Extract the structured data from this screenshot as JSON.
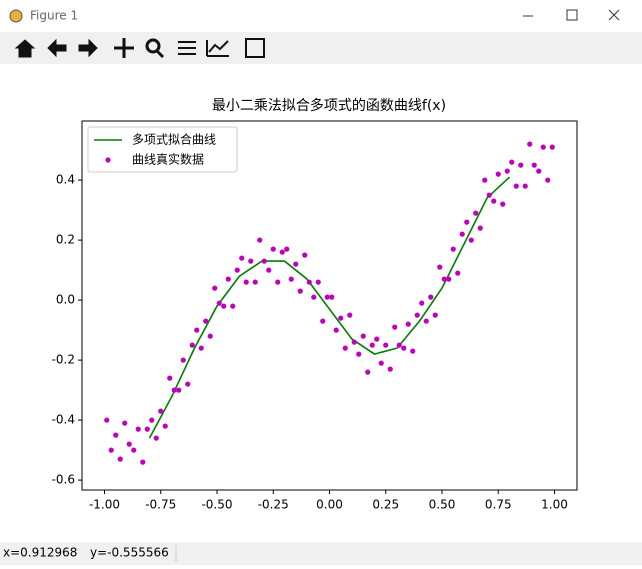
{
  "window": {
    "title": "Figure 1",
    "status": [
      "x=0.912968",
      "y=-0.555566"
    ]
  },
  "chart_data": {
    "type": "line",
    "title": "最小二乘法拟合多项式的函数曲线f(x)",
    "xlim": [
      -1.1,
      1.1
    ],
    "ylim": [
      -0.633,
      0.597
    ],
    "xticks": [
      {
        "value": -1,
        "label": "-1.00"
      },
      {
        "value": -0.75,
        "label": "-0.75"
      },
      {
        "value": -0.5,
        "label": "-0.50"
      },
      {
        "value": -0.25,
        "label": "-0.25"
      },
      {
        "value": 0,
        "label": "0.00"
      },
      {
        "value": 0.25,
        "label": "0.25"
      },
      {
        "value": 0.5,
        "label": "0.50"
      },
      {
        "value": 0.75,
        "label": "0.75"
      },
      {
        "value": 1,
        "label": "1.00"
      }
    ],
    "yticks": [
      -0.6,
      -0.4,
      -0.2,
      {
        "value": 0,
        "label": "0.0"
      },
      0.2,
      0.4
    ],
    "legend": "upper left",
    "series": [
      {
        "name": "多项式拟合曲线",
        "type": "line",
        "color": "#008000",
        "x": [
          -0.8,
          -0.7,
          -0.6,
          -0.5,
          -0.4,
          -0.3,
          -0.2,
          -0.1,
          0,
          0.1,
          0.2,
          0.3,
          0.4,
          0.5,
          0.6,
          0.7,
          0.8
        ],
        "values": [
          -0.46,
          -0.32,
          -0.16,
          -0.02,
          0.08,
          0.13,
          0.13,
          0.07,
          -0.03,
          -0.13,
          -0.18,
          -0.16,
          -0.07,
          0.04,
          0.19,
          0.34,
          0.41
        ]
      },
      {
        "name": "曲线真实数据",
        "type": "scatter",
        "color": "#bf00bf",
        "x": [
          -0.99,
          -0.97,
          -0.95,
          -0.93,
          -0.91,
          -0.89,
          -0.87,
          -0.85,
          -0.83,
          -0.81,
          -0.79,
          -0.77,
          -0.75,
          -0.73,
          -0.71,
          -0.69,
          -0.67,
          -0.65,
          -0.63,
          -0.61,
          -0.59,
          -0.57,
          -0.55,
          -0.53,
          -0.51,
          -0.49,
          -0.47,
          -0.45,
          -0.43,
          -0.41,
          -0.39,
          -0.37,
          -0.35,
          -0.33,
          -0.31,
          -0.29,
          -0.27,
          -0.25,
          -0.23,
          -0.21,
          -0.19,
          -0.17,
          -0.15,
          -0.13,
          -0.11,
          -0.09,
          -0.07,
          -0.05,
          -0.03,
          -0.01,
          0.01,
          0.03,
          0.05,
          0.07,
          0.09,
          0.11,
          0.13,
          0.15,
          0.17,
          0.19,
          0.21,
          0.23,
          0.25,
          0.27,
          0.29,
          0.31,
          0.33,
          0.35,
          0.37,
          0.39,
          0.41,
          0.43,
          0.45,
          0.47,
          0.49,
          0.51,
          0.53,
          0.55,
          0.57,
          0.59,
          0.61,
          0.63,
          0.65,
          0.67,
          0.69,
          0.71,
          0.73,
          0.75,
          0.77,
          0.79,
          0.81,
          0.83,
          0.85,
          0.87,
          0.89,
          0.91,
          0.93,
          0.95,
          0.97,
          0.99
        ],
        "values": [
          -0.4,
          -0.5,
          -0.45,
          -0.53,
          -0.41,
          -0.48,
          -0.5,
          -0.43,
          -0.54,
          -0.43,
          -0.4,
          -0.46,
          -0.37,
          -0.42,
          -0.26,
          -0.3,
          -0.3,
          -0.2,
          -0.28,
          -0.15,
          -0.1,
          -0.16,
          -0.07,
          -0.12,
          0.04,
          -0.01,
          -0.02,
          0.07,
          -0.02,
          0.1,
          0.14,
          0.06,
          0.13,
          0.06,
          0.2,
          0.13,
          0.1,
          0.17,
          0.06,
          0.16,
          0.17,
          0.07,
          0.12,
          0.03,
          0.15,
          0.06,
          0.01,
          0.06,
          -0.07,
          0.01,
          0.01,
          -0.1,
          -0.06,
          -0.16,
          -0.05,
          -0.14,
          -0.18,
          -0.12,
          -0.24,
          -0.15,
          -0.13,
          -0.21,
          -0.15,
          -0.23,
          -0.09,
          -0.15,
          -0.16,
          -0.08,
          -0.17,
          -0.05,
          -0.01,
          -0.07,
          0.01,
          -0.05,
          0.11,
          0.07,
          0.07,
          0.17,
          0.09,
          0.22,
          0.26,
          0.2,
          0.29,
          0.24,
          0.4,
          0.35,
          0.33,
          0.42,
          0.32,
          0.43,
          0.46,
          0.38,
          0.45,
          0.38,
          0.52,
          0.45,
          0.43,
          0.51,
          0.4,
          0.51
        ]
      }
    ]
  }
}
